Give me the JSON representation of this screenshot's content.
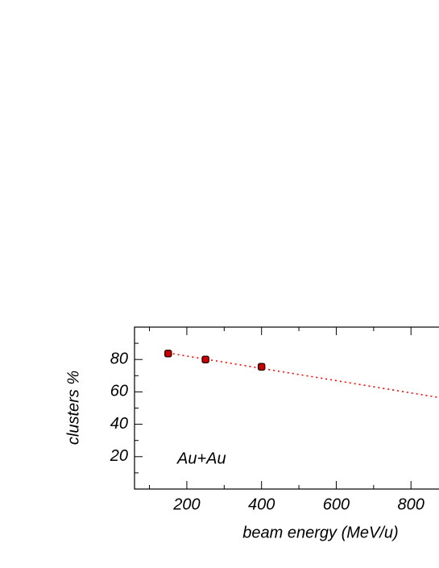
{
  "chart_data": {
    "type": "scatter",
    "x_label": "beam energy (MeV/u)",
    "y_label": "clusters %",
    "annotation": "Au+Au",
    "annotation_color": "#0000ff",
    "xlim": [
      60,
      875
    ],
    "ylim": [
      0,
      100
    ],
    "xticks": [
      200,
      400,
      600,
      800
    ],
    "yticks": [
      20,
      40,
      60,
      80
    ],
    "xminor": [
      100,
      300,
      500,
      700
    ],
    "yminor": [
      10,
      30,
      50,
      70,
      90
    ],
    "x": [
      150,
      250,
      400
    ],
    "series": [
      {
        "color": "#cc0000",
        "values": [
          83.7,
          80,
          75.5
        ]
      }
    ],
    "fit": {
      "x": [
        150,
        875
      ],
      "values": [
        84,
        56.5
      ],
      "color": "#ff0000"
    }
  }
}
